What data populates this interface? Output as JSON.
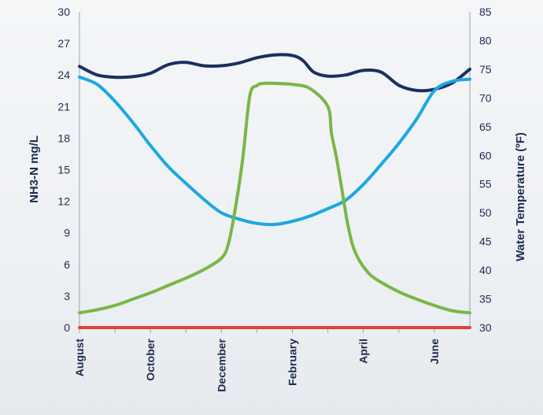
{
  "chart_data": {
    "type": "line",
    "title": "",
    "xlabel": "",
    "ylabel_left": "NH3-N mg/L",
    "ylabel_right": "Water Temperature (ºF)",
    "y_left_range": [
      0,
      30
    ],
    "y_left_ticks": [
      0,
      3,
      6,
      9,
      12,
      15,
      18,
      21,
      24,
      27,
      30
    ],
    "y_right_range": [
      30,
      85
    ],
    "y_right_ticks": [
      30,
      35,
      40,
      45,
      50,
      55,
      60,
      65,
      70,
      75,
      80,
      85
    ],
    "x_range": [
      0,
      11
    ],
    "x_tick_labels": [
      {
        "pos": 0,
        "label": "August"
      },
      {
        "pos": 2,
        "label": "October"
      },
      {
        "pos": 4,
        "label": "December"
      },
      {
        "pos": 6,
        "label": "February"
      },
      {
        "pos": 8,
        "label": "April"
      },
      {
        "pos": 10,
        "label": "June"
      }
    ],
    "x_minor_ticks": [
      1,
      3,
      5,
      7,
      9
    ],
    "grid": false,
    "legend": "none",
    "series": [
      {
        "axis": "right",
        "color": "#1b2f5e",
        "x": [
          0,
          0.5,
          1,
          1.5,
          2,
          2.5,
          3,
          3.5,
          4,
          4.5,
          5,
          5.5,
          6,
          6.3,
          6.6,
          7,
          7.5,
          8,
          8.5,
          9,
          9.5,
          10,
          10.5,
          11
        ],
        "y": [
          75.5,
          74,
          73.6,
          73.7,
          74.3,
          75.8,
          76.2,
          75.6,
          75.6,
          76.1,
          77,
          77.5,
          77.4,
          76.5,
          74.5,
          73.8,
          74,
          74.8,
          74.5,
          72.2,
          71.3,
          71.5,
          72.6,
          75
        ]
      },
      {
        "axis": "left",
        "color": "#1ba8e0",
        "x": [
          0,
          0.5,
          1,
          1.5,
          2,
          2.5,
          3,
          3.5,
          4,
          4.5,
          5,
          5.5,
          6,
          6.5,
          7,
          7.5,
          8,
          8.5,
          9,
          9.5,
          10,
          10.5,
          11
        ],
        "y": [
          23.8,
          23.1,
          21.5,
          19.5,
          17.3,
          15.3,
          13.7,
          12.2,
          10.9,
          10.3,
          9.9,
          9.8,
          10.1,
          10.6,
          11.3,
          12.1,
          13.6,
          15.5,
          17.5,
          19.8,
          22.5,
          23.4,
          23.6
        ]
      },
      {
        "axis": "left",
        "color": "#7ab648",
        "x": [
          0,
          0.5,
          1,
          1.5,
          2,
          2.5,
          3,
          3.5,
          4,
          4.2,
          4.4,
          4.6,
          4.8,
          5.0,
          5.2,
          5.5,
          6,
          6.5,
          7,
          7.1,
          7.25,
          7.4,
          7.55,
          7.7,
          7.85,
          8.0,
          8.2,
          8.5,
          9,
          9.5,
          10,
          10.5,
          11
        ],
        "y": [
          1.4,
          1.7,
          2.1,
          2.7,
          3.3,
          4.0,
          4.7,
          5.5,
          6.6,
          8.0,
          11.5,
          16,
          22,
          23.0,
          23.2,
          23.2,
          23.1,
          22.7,
          21.0,
          18.5,
          16,
          13,
          10,
          7.8,
          6.6,
          5.8,
          5.0,
          4.3,
          3.4,
          2.7,
          2.1,
          1.6,
          1.4
        ]
      },
      {
        "axis": "left",
        "color": "#e0413c",
        "x": [
          0,
          11
        ],
        "y": [
          0,
          0
        ]
      }
    ]
  }
}
